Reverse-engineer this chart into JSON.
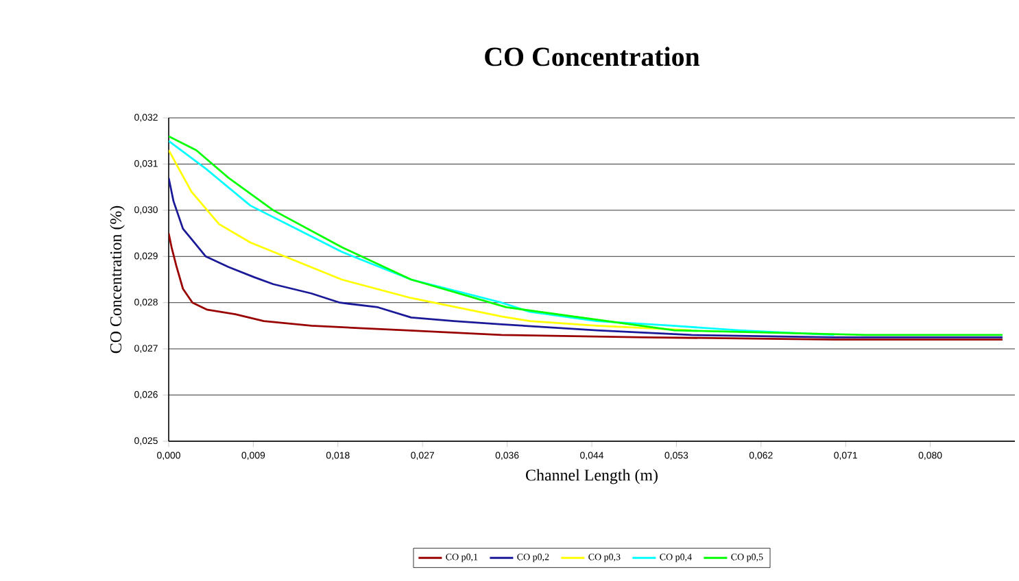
{
  "chart_data": {
    "type": "line",
    "title": "CO Concentration",
    "xlabel": "Channel Length (m)",
    "ylabel": "CO Concentration (%)",
    "xlim": [
      0,
      0.089
    ],
    "ylim": [
      0.025,
      0.032
    ],
    "xticks": [
      {
        "value": 0,
        "label": "0,000"
      },
      {
        "value": 0.0089,
        "label": "0,009"
      },
      {
        "value": 0.0178,
        "label": "0,018"
      },
      {
        "value": 0.0267,
        "label": "0,027"
      },
      {
        "value": 0.0356,
        "label": "0,036"
      },
      {
        "value": 0.0445,
        "label": "0,044"
      },
      {
        "value": 0.0534,
        "label": "0,053"
      },
      {
        "value": 0.0623,
        "label": "0,062"
      },
      {
        "value": 0.0712,
        "label": "0,071"
      },
      {
        "value": 0.0801,
        "label": "0,080"
      }
    ],
    "yticks": [
      {
        "value": 0.025,
        "label": "0,025"
      },
      {
        "value": 0.026,
        "label": "0,026"
      },
      {
        "value": 0.027,
        "label": "0,027"
      },
      {
        "value": 0.028,
        "label": "0,028"
      },
      {
        "value": 0.029,
        "label": "0,029"
      },
      {
        "value": 0.03,
        "label": "0,030"
      },
      {
        "value": 0.031,
        "label": "0,031"
      },
      {
        "value": 0.032,
        "label": "0,032"
      }
    ],
    "grid": "y",
    "legend": "bottom",
    "marker": "none",
    "line_style": "solid",
    "series": [
      {
        "name": "CO p0,1",
        "color": "#990000",
        "x": [
          0,
          0.0003,
          0.0008,
          0.0015,
          0.0025,
          0.004,
          0.007,
          0.01,
          0.015,
          0.02,
          0.025,
          0.035,
          0.05,
          0.07,
          0.0877
        ],
        "values": [
          0.0295,
          0.0292,
          0.0288,
          0.0283,
          0.028,
          0.02785,
          0.02775,
          0.0276,
          0.0275,
          0.02745,
          0.0274,
          0.0273,
          0.02725,
          0.0272,
          0.0272
        ]
      },
      {
        "name": "CO p0,2",
        "color": "#1a1a99",
        "x": [
          0,
          0.0005,
          0.0015,
          0.0025,
          0.0039,
          0.0063,
          0.009,
          0.011,
          0.015,
          0.018,
          0.022,
          0.0255,
          0.03,
          0.035,
          0.045,
          0.055,
          0.07,
          0.0877
        ],
        "values": [
          0.0307,
          0.0302,
          0.0296,
          0.02935,
          0.029,
          0.02877,
          0.02855,
          0.0284,
          0.0282,
          0.028,
          0.0279,
          0.02768,
          0.0276,
          0.02753,
          0.0274,
          0.0273,
          0.02725,
          0.02725
        ]
      },
      {
        "name": "CO p0,3",
        "color": "#ffff00",
        "x": [
          0,
          0.0024,
          0.0053,
          0.0086,
          0.0134,
          0.0182,
          0.0255,
          0.035,
          0.038,
          0.045,
          0.055
        ],
        "values": [
          0.0313,
          0.0304,
          0.0297,
          0.0293,
          0.0289,
          0.0285,
          0.0281,
          0.0277,
          0.0276,
          0.0275,
          0.0274
        ]
      },
      {
        "name": "CO p0,4",
        "color": "#00ffff",
        "x": [
          0,
          0.0039,
          0.0086,
          0.0134,
          0.0182,
          0.0255,
          0.035,
          0.038,
          0.045,
          0.053,
          0.06,
          0.07
        ],
        "values": [
          0.0315,
          0.0309,
          0.0301,
          0.0296,
          0.0291,
          0.0285,
          0.028,
          0.0278,
          0.0276,
          0.0275,
          0.0274,
          0.0273
        ]
      },
      {
        "name": "CO p0,5",
        "color": "#00ff00",
        "x": [
          0,
          0.0029,
          0.0063,
          0.011,
          0.0182,
          0.0255,
          0.0355,
          0.0532,
          0.0733,
          0.0877
        ],
        "values": [
          0.0316,
          0.0313,
          0.0307,
          0.03,
          0.0292,
          0.0285,
          0.0279,
          0.0274,
          0.0273,
          0.0273
        ]
      }
    ]
  }
}
